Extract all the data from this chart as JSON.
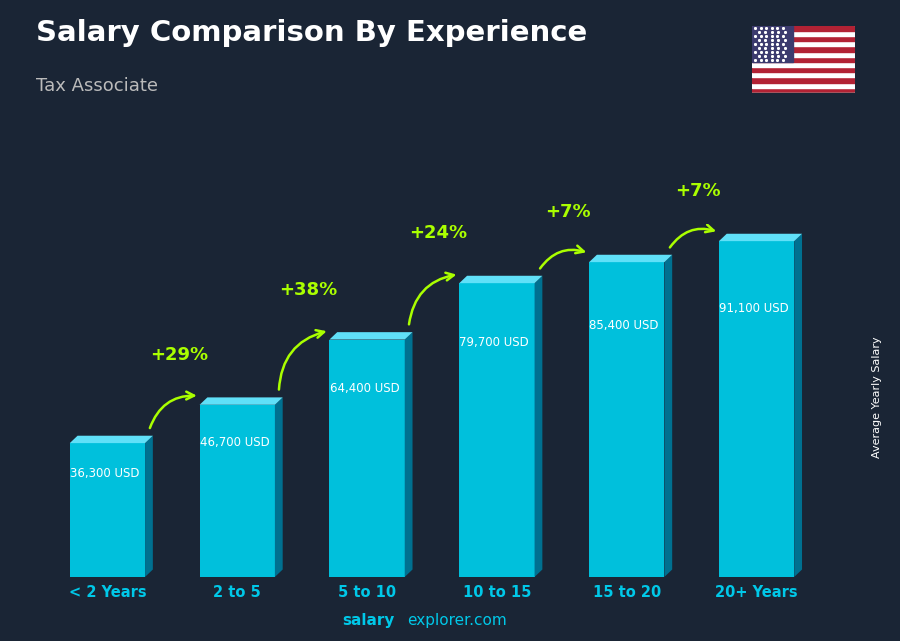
{
  "title": "Salary Comparison By Experience",
  "subtitle": "Tax Associate",
  "ylabel": "Average Yearly Salary",
  "website": "salaryexplorer.com",
  "categories": [
    "< 2 Years",
    "2 to 5",
    "5 to 10",
    "10 to 15",
    "15 to 20",
    "20+ Years"
  ],
  "values": [
    36300,
    46700,
    64400,
    79700,
    85400,
    91100
  ],
  "value_labels": [
    "36,300 USD",
    "46,700 USD",
    "64,400 USD",
    "79,700 USD",
    "85,400 USD",
    "91,100 USD"
  ],
  "pct_labels": [
    "+29%",
    "+38%",
    "+24%",
    "+7%",
    "+7%"
  ],
  "face_color": "#00C0DC",
  "side_color": "#007090",
  "top_color": "#60E0F8",
  "title_color": "white",
  "subtitle_color": "#bbbbbb",
  "label_color": "white",
  "pct_color": "#AAFF00",
  "bg_color": "#1a2535",
  "arrow_color": "#AAFF00",
  "website_bold": "salary",
  "website_normal": "explorer.com",
  "website_color": "#00C8E8",
  "cat_color": "#00C8E8"
}
